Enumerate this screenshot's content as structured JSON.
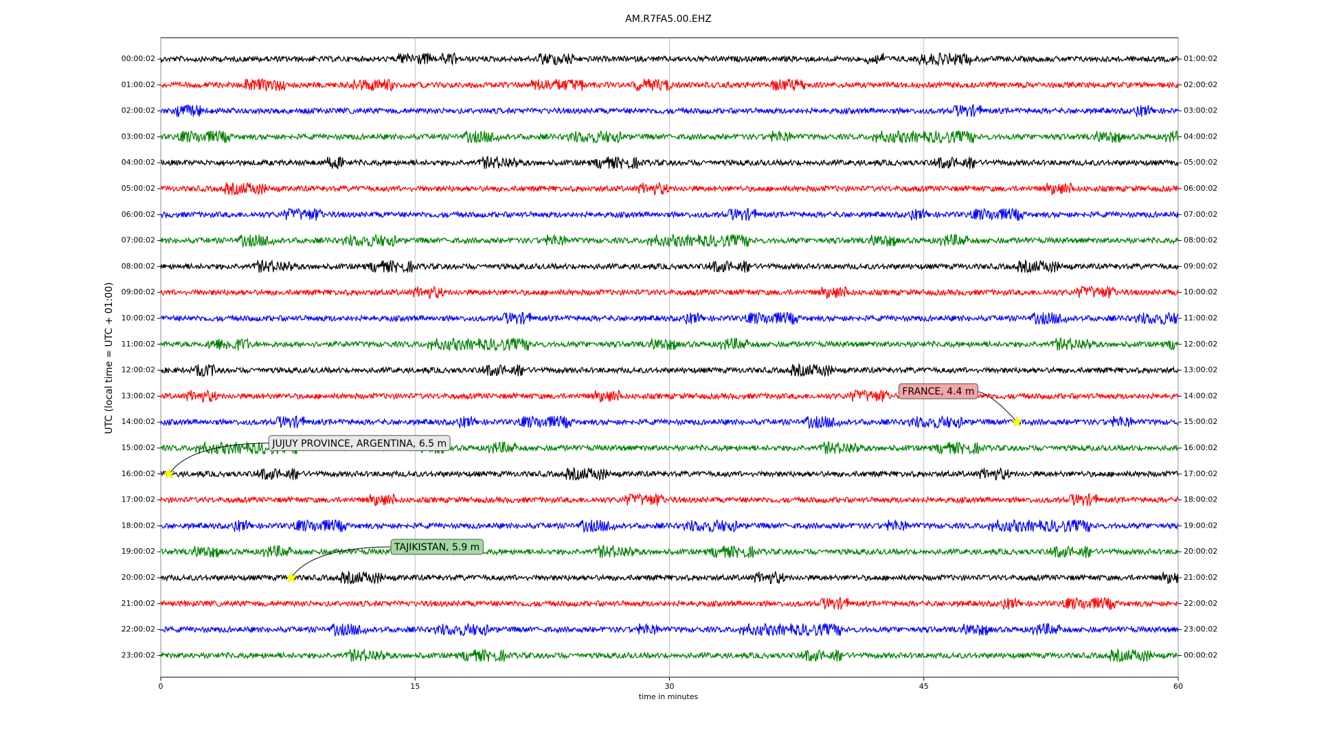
{
  "chart_data": {
    "type": "helicorder",
    "title": "AM.R7FA5.00.EHZ",
    "x_label": "time in minutes",
    "y_label": "UTC (local time = UTC + 01:00)",
    "xlim": [
      0,
      60
    ],
    "xticks": [
      0,
      15,
      30,
      45,
      60
    ],
    "grid": true,
    "series": [
      {
        "name": "00:00:02",
        "right_label": "01:00:02",
        "color": "#000000"
      },
      {
        "name": "01:00:02",
        "right_label": "02:00:02",
        "color": "#ff0000"
      },
      {
        "name": "02:00:02",
        "right_label": "03:00:02",
        "color": "#0000ff"
      },
      {
        "name": "03:00:02",
        "right_label": "04:00:02",
        "color": "#008000"
      },
      {
        "name": "04:00:02",
        "right_label": "05:00:02",
        "color": "#000000"
      },
      {
        "name": "05:00:02",
        "right_label": "06:00:02",
        "color": "#ff0000"
      },
      {
        "name": "06:00:02",
        "right_label": "07:00:02",
        "color": "#0000ff"
      },
      {
        "name": "07:00:02",
        "right_label": "08:00:02",
        "color": "#008000"
      },
      {
        "name": "08:00:02",
        "right_label": "09:00:02",
        "color": "#000000"
      },
      {
        "name": "09:00:02",
        "right_label": "10:00:02",
        "color": "#ff0000"
      },
      {
        "name": "10:00:02",
        "right_label": "11:00:02",
        "color": "#0000ff"
      },
      {
        "name": "11:00:02",
        "right_label": "12:00:02",
        "color": "#008000"
      },
      {
        "name": "12:00:02",
        "right_label": "13:00:02",
        "color": "#000000"
      },
      {
        "name": "13:00:02",
        "right_label": "14:00:02",
        "color": "#ff0000"
      },
      {
        "name": "14:00:02",
        "right_label": "15:00:02",
        "color": "#0000ff",
        "events": [
          {
            "x": 50.5,
            "label": "FRANCE, 4.4 m",
            "color": "#f4a6a6"
          }
        ]
      },
      {
        "name": "15:00:02",
        "right_label": "16:00:02",
        "color": "#008000"
      },
      {
        "name": "16:00:02",
        "right_label": "17:00:02",
        "color": "#000000",
        "events": [
          {
            "x": 0.5,
            "label": "JUJUY PROVINCE, ARGENTINA, 6.5 m",
            "color": "#e8e8e8"
          }
        ]
      },
      {
        "name": "17:00:02",
        "right_label": "18:00:02",
        "color": "#ff0000"
      },
      {
        "name": "18:00:02",
        "right_label": "19:00:02",
        "color": "#0000ff"
      },
      {
        "name": "19:00:02",
        "right_label": "20:00:02",
        "color": "#008000"
      },
      {
        "name": "20:00:02",
        "right_label": "21:00:02",
        "color": "#000000",
        "events": [
          {
            "x": 7.7,
            "label": "TAJIKISTAN, 5.9 m",
            "color": "#a3d9a3"
          }
        ]
      },
      {
        "name": "21:00:02",
        "right_label": "22:00:02",
        "color": "#ff0000"
      },
      {
        "name": "22:00:02",
        "right_label": "23:00:02",
        "color": "#0000ff"
      },
      {
        "name": "23:00:02",
        "right_label": "00:00:02",
        "color": "#008000"
      }
    ]
  }
}
